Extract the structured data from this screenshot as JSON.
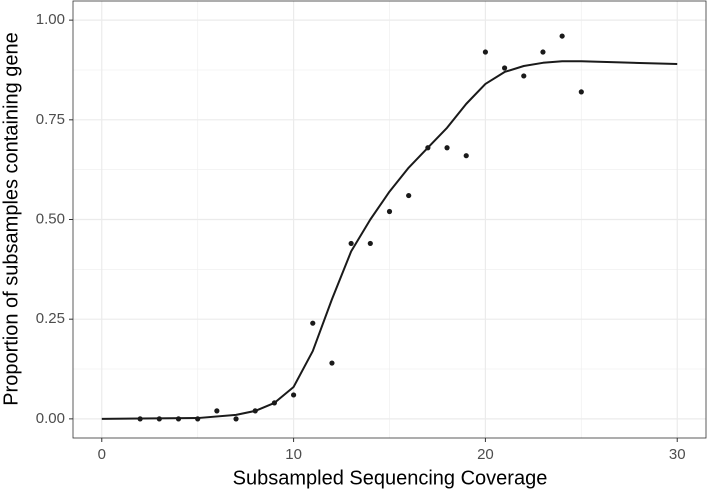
{
  "chart_data": {
    "type": "scatter",
    "xlabel": "Subsampled Sequencing Coverage",
    "ylabel": "Proportion of subsamples containing gene",
    "xlim": [
      -1.5,
      31.5
    ],
    "ylim": [
      -0.048,
      1.048
    ],
    "xticks": [
      0,
      10,
      20,
      30
    ],
    "yticks": [
      {
        "value": 0,
        "label": "0.00"
      },
      {
        "value": 0.25,
        "label": "0.25"
      },
      {
        "value": 0.5,
        "label": "0.50"
      },
      {
        "value": 0.75,
        "label": "0.75"
      },
      {
        "value": 1,
        "label": "1.00"
      }
    ],
    "x_minor_ticks": [
      5,
      15,
      25
    ],
    "y_minor_ticks": [
      0.125,
      0.375,
      0.625,
      0.875
    ],
    "grid": true,
    "series": [
      {
        "type": "scatter",
        "color": "#1a1a1a",
        "x": [
          2,
          3,
          4,
          5,
          6,
          7,
          8,
          9,
          10,
          11,
          12,
          13,
          14,
          15,
          16,
          17,
          18,
          19,
          20,
          21,
          22,
          23,
          24,
          25
        ],
        "values": [
          0,
          0,
          0,
          0,
          0.02,
          0,
          0.02,
          0.04,
          0.06,
          0.24,
          0.14,
          0.44,
          0.44,
          0.52,
          0.56,
          0.68,
          0.68,
          0.66,
          0.92,
          0.88,
          0.86,
          0.92,
          0.96,
          0.82
        ]
      },
      {
        "type": "line",
        "color": "#1a1a1a",
        "x": [
          0,
          5,
          7,
          8,
          9,
          10,
          11,
          12,
          13,
          14,
          15,
          16,
          17,
          18,
          19,
          20,
          21,
          22,
          23,
          24,
          25,
          27,
          30
        ],
        "values": [
          0,
          0.002,
          0.01,
          0.02,
          0.04,
          0.08,
          0.17,
          0.3,
          0.42,
          0.5,
          0.57,
          0.63,
          0.68,
          0.73,
          0.79,
          0.84,
          0.87,
          0.885,
          0.893,
          0.897,
          0.897,
          0.894,
          0.89
        ]
      }
    ]
  }
}
